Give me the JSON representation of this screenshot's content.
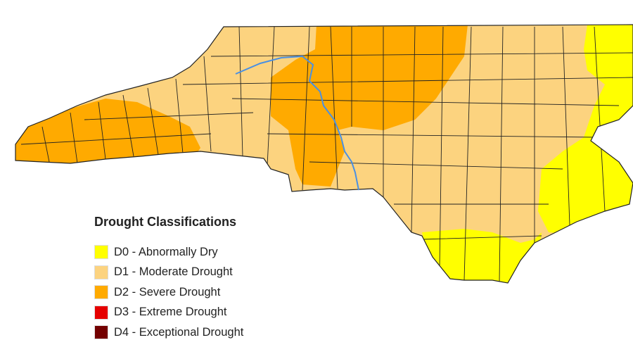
{
  "legend": {
    "title": "Drought Classifications",
    "items": [
      {
        "label": "D0 - Abnormally Dry",
        "color": "#ffff00"
      },
      {
        "label": "D1 - Moderate Drought",
        "color": "#fcd37f"
      },
      {
        "label": "D2 - Severe Drought",
        "color": "#ffaa00"
      },
      {
        "label": "D3 - Extreme Drought",
        "color": "#e60000"
      },
      {
        "label": "D4 - Exceptional Drought",
        "color": "#730000"
      }
    ]
  },
  "map": {
    "region": "North Carolina",
    "river_color": "#4a90e2",
    "boundary_color": "#222222"
  }
}
